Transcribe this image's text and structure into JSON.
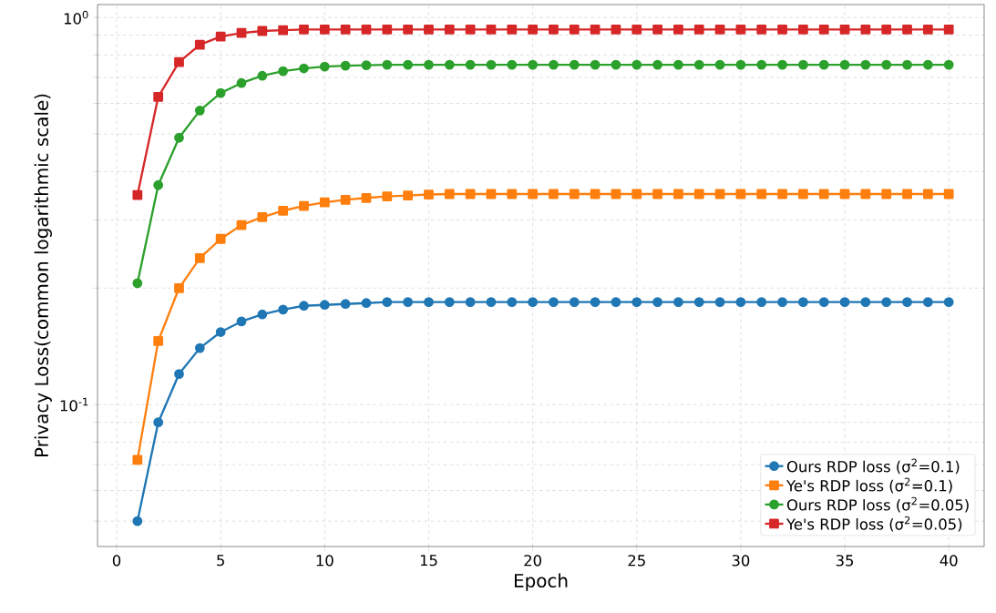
{
  "chart_data": {
    "type": "line",
    "xlabel": "Epoch",
    "ylabel": "Privacy Loss(common logarithmic scale)",
    "x": [
      1,
      2,
      3,
      4,
      5,
      6,
      7,
      8,
      9,
      10,
      11,
      12,
      13,
      14,
      15,
      16,
      17,
      18,
      19,
      20,
      21,
      22,
      23,
      24,
      25,
      26,
      27,
      28,
      29,
      30,
      31,
      32,
      33,
      34,
      35,
      36,
      37,
      38,
      39,
      40
    ],
    "series": [
      {
        "name": "Ours RDP loss (σ$^{2}$=0.1)",
        "color": "#1f77b4",
        "marker": "circle",
        "values": [
          0.05,
          0.09,
          0.12,
          0.14,
          0.154,
          0.164,
          0.171,
          0.176,
          0.18,
          0.181,
          0.182,
          0.183,
          0.184,
          0.184,
          0.184,
          0.184,
          0.184,
          0.184,
          0.184,
          0.184,
          0.184,
          0.184,
          0.184,
          0.184,
          0.184,
          0.184,
          0.184,
          0.184,
          0.184,
          0.184,
          0.184,
          0.184,
          0.184,
          0.184,
          0.184,
          0.184,
          0.184,
          0.184,
          0.184,
          0.184
        ]
      },
      {
        "name": "Ye's RDP loss (σ$^{2}$=0.1)",
        "color": "#ff7f0e",
        "marker": "square",
        "values": [
          0.072,
          0.146,
          0.2,
          0.239,
          0.268,
          0.291,
          0.305,
          0.317,
          0.326,
          0.333,
          0.338,
          0.342,
          0.345,
          0.347,
          0.349,
          0.35,
          0.35,
          0.35,
          0.35,
          0.35,
          0.35,
          0.35,
          0.35,
          0.35,
          0.35,
          0.35,
          0.35,
          0.35,
          0.35,
          0.35,
          0.35,
          0.35,
          0.35,
          0.35,
          0.35,
          0.35,
          0.35,
          0.35,
          0.35,
          0.35
        ]
      },
      {
        "name": "Ours RDP loss (σ$^{2}$=0.05)",
        "color": "#2ca02c",
        "marker": "circle",
        "values": [
          0.206,
          0.369,
          0.489,
          0.575,
          0.638,
          0.677,
          0.707,
          0.727,
          0.739,
          0.747,
          0.751,
          0.753,
          0.755,
          0.755,
          0.755,
          0.755,
          0.755,
          0.755,
          0.755,
          0.755,
          0.755,
          0.755,
          0.755,
          0.755,
          0.755,
          0.755,
          0.755,
          0.755,
          0.755,
          0.755,
          0.755,
          0.755,
          0.755,
          0.755,
          0.755,
          0.755,
          0.755,
          0.755,
          0.755,
          0.755
        ]
      },
      {
        "name": "Ye's RDP loss (σ$^{2}$=0.05)",
        "color": "#d62728",
        "marker": "square",
        "values": [
          0.348,
          0.624,
          0.767,
          0.85,
          0.893,
          0.912,
          0.923,
          0.927,
          0.931,
          0.931,
          0.931,
          0.931,
          0.931,
          0.931,
          0.931,
          0.931,
          0.931,
          0.931,
          0.931,
          0.931,
          0.931,
          0.931,
          0.931,
          0.931,
          0.931,
          0.931,
          0.931,
          0.931,
          0.931,
          0.931,
          0.931,
          0.931,
          0.931,
          0.931,
          0.931,
          0.931,
          0.931,
          0.931,
          0.931,
          0.931
        ]
      }
    ],
    "xlim": [
      -0.92,
      41.7
    ],
    "xticks": [
      0,
      5,
      10,
      15,
      20,
      25,
      30,
      35,
      40
    ],
    "ylim": [
      0.043,
      1.08
    ],
    "log": true,
    "yticks": [
      {
        "value": 0.05,
        "label": null
      },
      {
        "value": 0.06,
        "label": null
      },
      {
        "value": 0.07,
        "label": null
      },
      {
        "value": 0.08,
        "label": null
      },
      {
        "value": 0.09,
        "label": null
      },
      {
        "value": 0.1,
        "label": "10$^{-1}$"
      },
      {
        "value": 0.2,
        "label": null
      },
      {
        "value": 0.3,
        "label": null
      },
      {
        "value": 0.4,
        "label": null
      },
      {
        "value": 0.5,
        "label": null
      },
      {
        "value": 0.6,
        "label": null
      },
      {
        "value": 0.7,
        "label": null
      },
      {
        "value": 0.8,
        "label": null
      },
      {
        "value": 0.9,
        "label": null
      },
      {
        "value": 1,
        "label": "10$^{0}$"
      }
    ],
    "grid": true,
    "legend": "bottom right",
    "line_style": "solid"
  }
}
